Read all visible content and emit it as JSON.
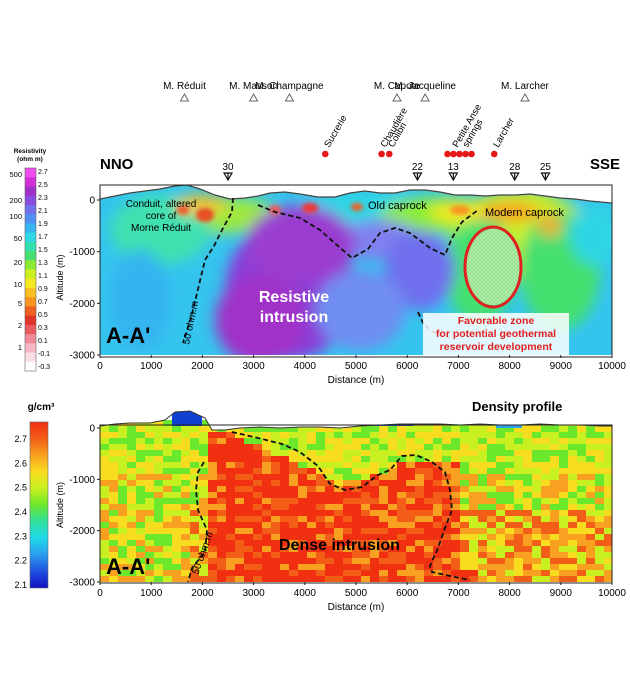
{
  "top_panel": {
    "section_label": "A-A'",
    "left_direction": "NNO",
    "right_direction": "SSE",
    "xlabel": "Distance (m)",
    "ylabel": "Altitude (m)",
    "x_ticks": [
      "0",
      "1000",
      "2000",
      "3000",
      "4000",
      "5000",
      "6000",
      "7000",
      "8000",
      "9000",
      "10000"
    ],
    "y_ticks": [
      "0",
      "-1000",
      "-2000",
      "-3000"
    ],
    "x_range": [
      0,
      10000
    ],
    "y_range": [
      -3000,
      0
    ],
    "mountains": [
      {
        "name": "M. Réduit",
        "x": 1650
      },
      {
        "name": "M. Masson",
        "x": 3000
      },
      {
        "name": "M. Champagne",
        "x": 3700
      },
      {
        "name": "M. Capote",
        "x": 5800
      },
      {
        "name": "M. Jacqueline",
        "x": 6350
      },
      {
        "name": "M. Larcher",
        "x": 8300
      }
    ],
    "springs": [
      {
        "name": "Sucrerie",
        "x": 4400
      },
      {
        "name": "Chaudière",
        "x": 5500
      },
      {
        "name": "Colibri",
        "x": 5650
      },
      {
        "name": "Petite Anse springs",
        "x": 7100
      },
      {
        "name": "Larcher",
        "x": 7700
      }
    ],
    "wells": [
      {
        "label": "30",
        "x": 2500
      },
      {
        "label": "22",
        "x": 6200
      },
      {
        "label": "13",
        "x": 6900
      },
      {
        "label": "28",
        "x": 8100
      },
      {
        "label": "25",
        "x": 8700
      }
    ],
    "annotations": {
      "conduit": [
        "Conduit, altered",
        "core of",
        "Morne Réduit"
      ],
      "old_caprock": "Old caprock",
      "modern_caprock": "Modern caprock",
      "resistive": [
        "Resistive",
        "intrusion"
      ],
      "favorable": [
        "Favorable zone",
        "for potential geothermal",
        "reservoir development"
      ],
      "contour": "50 ohm.m"
    },
    "colorbar": {
      "title": [
        "Resistivity",
        "(ohm m)"
      ],
      "left_ticks": [
        "500",
        "200",
        "100",
        "50",
        "20",
        "10",
        "5",
        "2",
        "1"
      ],
      "right_ticks": [
        "2.7",
        "2.5",
        "2.3",
        "2.1",
        "1.9",
        "1.7",
        "1.5",
        "1.3",
        "1.1",
        "0.9",
        "0.7",
        "0.5",
        "0.3",
        "0.1",
        "-0.1",
        "-0.3"
      ],
      "colors": [
        "#f04df0",
        "#d230d8",
        "#a030c8",
        "#8a4ce0",
        "#7070ee",
        "#4f8ef2",
        "#35b4f0",
        "#2fd6e4",
        "#35e0b0",
        "#45e070",
        "#8cec34",
        "#ccf020",
        "#f4e820",
        "#f8c020",
        "#f89520",
        "#f06020",
        "#e03428",
        "#e85a60",
        "#f08a98",
        "#f6b8c6",
        "#fbdde4",
        "#ffffff"
      ]
    }
  },
  "bottom_panel": {
    "section_label": "A-A'",
    "title": "Density profile",
    "xlabel": "Distance (m)",
    "ylabel": "Altitude (m)",
    "x_ticks": [
      "0",
      "1000",
      "2000",
      "3000",
      "4000",
      "5000",
      "6000",
      "7000",
      "8000",
      "9000",
      "10000"
    ],
    "y_ticks": [
      "0",
      "-1000",
      "-2000",
      "-3000"
    ],
    "annotations": {
      "dense": "Dense intrusion",
      "contour": "50 ohm.m"
    },
    "colorbar": {
      "unit": "g/cm³",
      "ticks": [
        "2.7",
        "2.6",
        "2.5",
        "2.4",
        "2.3",
        "2.2",
        "2.1"
      ],
      "colors": [
        "#f03010",
        "#f25e18",
        "#f8a020",
        "#f8dc20",
        "#c8f020",
        "#6ce82c",
        "#30e0a0",
        "#20d8e8",
        "#2a9cf0",
        "#2050e0",
        "#1010c0"
      ]
    }
  }
}
